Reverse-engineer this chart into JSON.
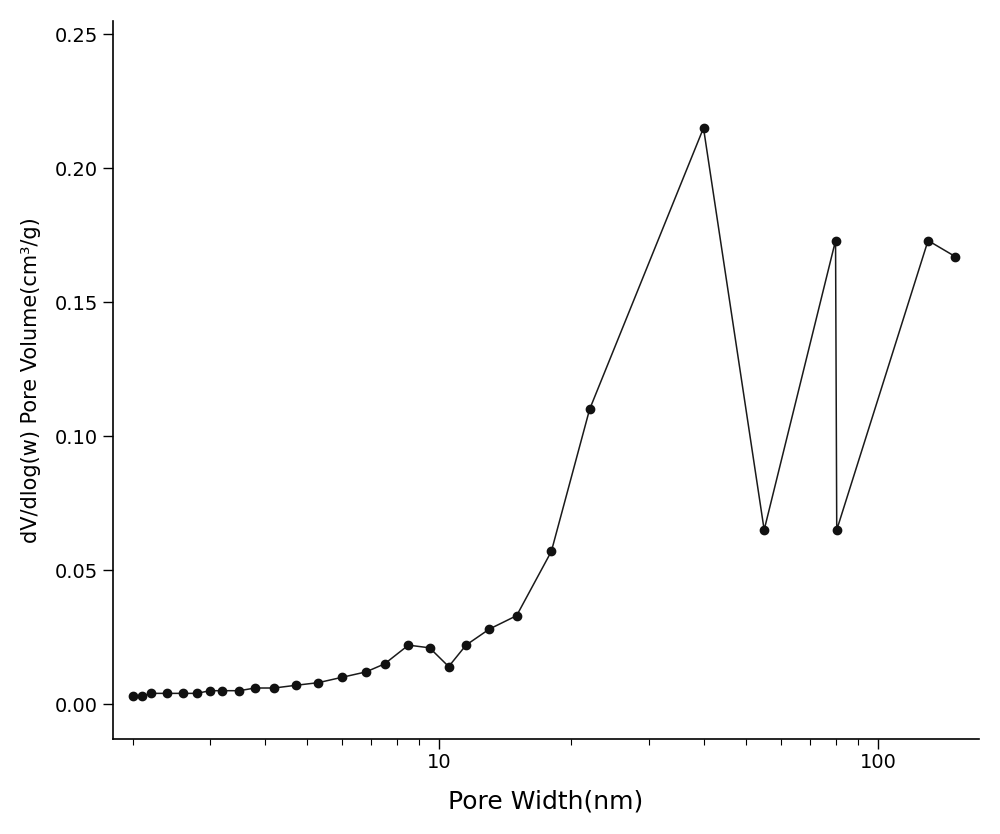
{
  "x": [
    2.0,
    2.1,
    2.2,
    2.4,
    2.6,
    2.8,
    3.0,
    3.2,
    3.5,
    3.8,
    4.2,
    4.7,
    5.3,
    6.0,
    6.8,
    7.5,
    8.5,
    9.5,
    10.5,
    11.5,
    13.0,
    15.0,
    18.0,
    22.0,
    40.0,
    55.0,
    80.0,
    80.5,
    130.0,
    150.0
  ],
  "y": [
    0.003,
    0.003,
    0.004,
    0.004,
    0.004,
    0.004,
    0.005,
    0.005,
    0.005,
    0.006,
    0.006,
    0.007,
    0.008,
    0.01,
    0.012,
    0.015,
    0.022,
    0.021,
    0.014,
    0.022,
    0.028,
    0.033,
    0.057,
    0.11,
    0.215,
    0.065,
    0.173,
    0.065,
    0.173,
    0.167
  ],
  "xlabel": "Pore Width(nm)",
  "ylabel": "dV/dlog(w) Pore Volume(cm³/g)",
  "xlim_log": [
    1.8,
    170
  ],
  "ylim": [
    -0.013,
    0.255
  ],
  "yticks": [
    0.0,
    0.05,
    0.1,
    0.15,
    0.2,
    0.25
  ],
  "xticks_major": [
    10,
    100
  ],
  "xtick_labels": [
    "10",
    "100"
  ],
  "line_color": "#1a1a1a",
  "marker_color": "#111111",
  "marker_size": 6,
  "line_width": 1.1,
  "background_color": "#ffffff",
  "xlabel_fontsize": 18,
  "ylabel_fontsize": 15,
  "tick_fontsize": 14,
  "fig_width": 10.0,
  "fig_height": 8.34,
  "dpi": 100
}
